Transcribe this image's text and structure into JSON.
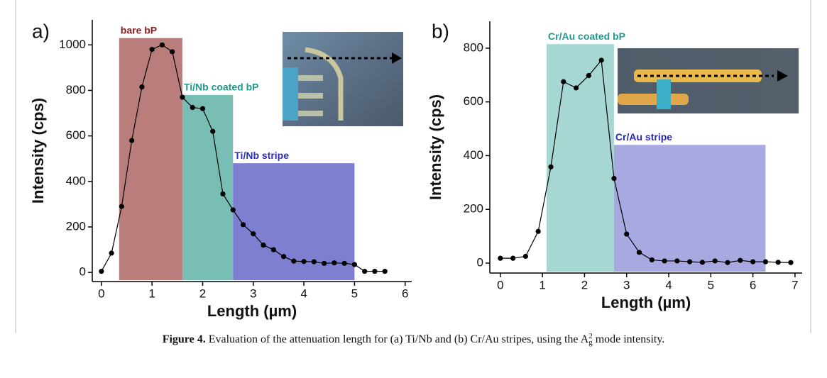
{
  "chart_data": [
    {
      "type": "line",
      "panel": "a)",
      "x_label": "Length (µm)",
      "y_label": "Intensity (cps)",
      "x": [
        0,
        0.2,
        0.4,
        0.6,
        0.8,
        1.0,
        1.2,
        1.4,
        1.6,
        1.8,
        2.0,
        2.2,
        2.4,
        2.6,
        2.8,
        3.0,
        3.2,
        3.4,
        3.6,
        3.8,
        4.0,
        4.2,
        4.4,
        4.6,
        4.8,
        5.0,
        5.2,
        5.4,
        5.6
      ],
      "series": [
        {
          "color": "#000000",
          "values": [
            5,
            85,
            290,
            580,
            815,
            980,
            1000,
            970,
            770,
            725,
            720,
            620,
            345,
            275,
            210,
            170,
            120,
            100,
            70,
            50,
            48,
            47,
            40,
            42,
            40,
            35,
            5,
            5,
            5
          ]
        }
      ],
      "regions": [
        {
          "label": "bare bP",
          "x": [
            0.35,
            1.6
          ],
          "top": 1030,
          "color": "#b97e7c",
          "label_color": "#8b1c1c"
        },
        {
          "label": "Ti/Nb coated bP",
          "x": [
            1.6,
            2.6
          ],
          "top": 780,
          "color": "#79beb5",
          "label_color": "#21978a"
        },
        {
          "label": "Ti/Nb stripe",
          "x": [
            2.6,
            5.0
          ],
          "top": 480,
          "color": "#7f7fd2",
          "label_color": "#2e2eb2"
        }
      ],
      "xlim": [
        -0.18,
        6.13
      ],
      "ylim": [
        -40,
        1110
      ],
      "xticks": [
        0,
        1,
        2,
        3,
        4,
        5,
        6
      ],
      "yticks": [
        0,
        200,
        400,
        600,
        800,
        1000
      ]
    },
    {
      "type": "line",
      "panel": "b)",
      "x_label": "Length (µm)",
      "y_label": "Intensity (cps)",
      "x": [
        0,
        0.3,
        0.6,
        0.9,
        1.2,
        1.5,
        1.8,
        2.1,
        2.4,
        2.7,
        3.0,
        3.3,
        3.6,
        3.9,
        4.2,
        4.5,
        4.8,
        5.1,
        5.4,
        5.7,
        6.0,
        6.3,
        6.6,
        6.9
      ],
      "series": [
        {
          "color": "#000000",
          "values": [
            18,
            18,
            25,
            118,
            358,
            675,
            652,
            698,
            755,
            315,
            108,
            40,
            12,
            8,
            8,
            5,
            3,
            8,
            2,
            10,
            5,
            5,
            3,
            2
          ]
        }
      ],
      "regions": [
        {
          "label": "Cr/Au coated bP",
          "x": [
            1.1,
            2.7
          ],
          "top": 815,
          "color": "#a6d7d3",
          "label_color": "#1f9a8d"
        },
        {
          "label": "Cr/Au stripe",
          "x": [
            2.7,
            6.3
          ],
          "top": 440,
          "color": "#a9a9e2",
          "label_color": "#2a2aae"
        }
      ],
      "xlim": [
        -0.25,
        7.17
      ],
      "ylim": [
        -37,
        900
      ],
      "xticks": [
        0,
        1,
        2,
        3,
        4,
        5,
        6,
        7
      ],
      "yticks": [
        0,
        200,
        400,
        600,
        800
      ]
    }
  ],
  "caption": {
    "label": "Figure 4.",
    "text": "Evaluation of the attenuation length for (a) Ti/Nb and (b) Cr/Au stripes, using the A",
    "sup": "2",
    "sub": "g",
    "end": " mode intensity."
  }
}
